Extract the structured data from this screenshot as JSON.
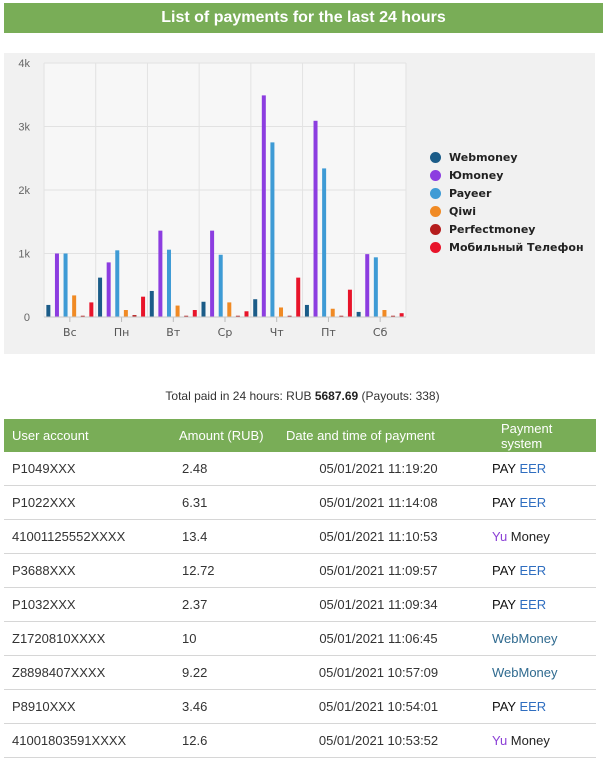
{
  "header": {
    "title": "List of payments for the last 24 hours"
  },
  "chart_data": {
    "type": "bar",
    "categories": [
      "Вс",
      "Пн",
      "Вт",
      "Ср",
      "Чт",
      "Пт",
      "Сб"
    ],
    "y_ticks": [
      "0",
      "1k",
      "2k",
      "3k",
      "4k"
    ],
    "ylim": [
      0,
      4000
    ],
    "grid": true,
    "legend_position": "right",
    "series": [
      {
        "name": "Webmoney",
        "color": "#1b5c88",
        "values": [
          190,
          620,
          410,
          240,
          280,
          190,
          80
        ]
      },
      {
        "name": "Юmoney",
        "color": "#8c3de0",
        "values": [
          1000,
          860,
          1360,
          1360,
          3490,
          3090,
          990
        ]
      },
      {
        "name": "Payeer",
        "color": "#3e9bd5",
        "values": [
          1000,
          1050,
          1060,
          980,
          2750,
          2340,
          940
        ]
      },
      {
        "name": "Qiwi",
        "color": "#f08a24",
        "values": [
          340,
          110,
          180,
          230,
          150,
          130,
          110
        ]
      },
      {
        "name": "Perfectmoney",
        "color": "#b51c1c",
        "values": [
          20,
          30,
          20,
          20,
          20,
          20,
          20
        ]
      },
      {
        "name": "Мобильный Телефон",
        "color": "#e8142a",
        "values": [
          230,
          320,
          110,
          90,
          620,
          430,
          60
        ]
      }
    ]
  },
  "summary": {
    "prefix": "Total paid in 24 hours: RUB ",
    "amount": "5687.69",
    "suffix": " (Payouts: 338)"
  },
  "table": {
    "headers": [
      "User account",
      "Amount (RUB)",
      "Date and time of payment",
      "Payment system"
    ],
    "rows": [
      {
        "account": "P1049XXX",
        "amount": "2.48",
        "datetime": "05/01/2021 11:19:20",
        "system": "payeer"
      },
      {
        "account": "P1022XXX",
        "amount": "6.31",
        "datetime": "05/01/2021 11:14:08",
        "system": "payeer"
      },
      {
        "account": "41001125552XXXX",
        "amount": "13.4",
        "datetime": "05/01/2021 11:10:53",
        "system": "yumoney"
      },
      {
        "account": "P3688XXX",
        "amount": "12.72",
        "datetime": "05/01/2021 11:09:57",
        "system": "payeer"
      },
      {
        "account": "P1032XXX",
        "amount": "2.37",
        "datetime": "05/01/2021 11:09:34",
        "system": "payeer"
      },
      {
        "account": "Z1720810XXXX",
        "amount": "10",
        "datetime": "05/01/2021 11:06:45",
        "system": "webmoney"
      },
      {
        "account": "Z8898407XXXX",
        "amount": "9.22",
        "datetime": "05/01/2021 10:57:09",
        "system": "webmoney"
      },
      {
        "account": "P8910XXX",
        "amount": "3.46",
        "datetime": "05/01/2021 10:54:01",
        "system": "payeer"
      },
      {
        "account": "41001803591XXXX",
        "amount": "12.6",
        "datetime": "05/01/2021 10:53:52",
        "system": "yumoney"
      }
    ]
  },
  "logos": {
    "payeer": [
      "PAY ",
      "EER"
    ],
    "yumoney": [
      "Yu",
      " Money"
    ],
    "webmoney": [
      "WebMoney"
    ]
  }
}
